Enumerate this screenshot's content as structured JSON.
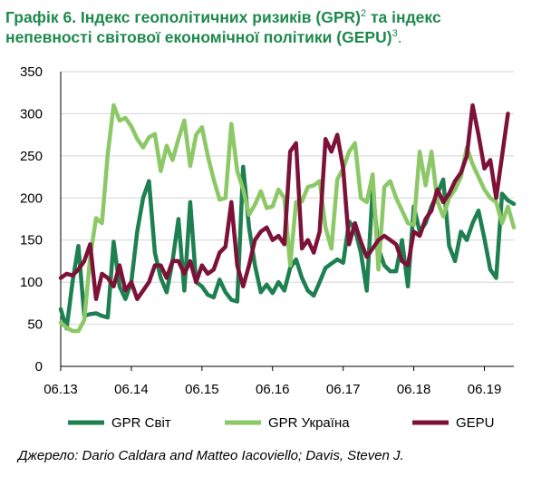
{
  "title": {
    "line1": "Графік 6. Індекс геополітичних ризиків (GPR)",
    "sup1": "2",
    "line1_tail": " та індекс",
    "line2": "непевності світової економічної політики (GEPU)",
    "sup2": "3",
    "line2_tail": "."
  },
  "source": "Джерело: Dario Caldara and Matteo Iacoviello; Davis, Steven J.",
  "chart_data": {
    "type": "line",
    "title": "Графік 6. Індекс геополітичних ризиків (GPR) та індекс непевності світової економічної політики (GEPU)",
    "xlabel": "",
    "ylabel": "",
    "ylim": [
      0,
      350
    ],
    "yticks": [
      0,
      50,
      100,
      150,
      200,
      250,
      300,
      350
    ],
    "xtick_labels": [
      "06.13",
      "06.14",
      "06.15",
      "06.16",
      "06.17",
      "06.18",
      "06.19"
    ],
    "x_start": "06.13",
    "x_end": "07.19",
    "x_unit": "month",
    "legend_position": "bottom",
    "series": [
      {
        "name": "GPR Світ",
        "color": "#1e8050",
        "values": [
          68,
          45,
          100,
          143,
          60,
          62,
          63,
          60,
          58,
          148,
          95,
          80,
          100,
          160,
          200,
          220,
          135,
          105,
          88,
          125,
          175,
          90,
          195,
          100,
          95,
          85,
          82,
          103,
          88,
          79,
          77,
          237,
          165,
          120,
          88,
          97,
          87,
          100,
          90,
          117,
          127,
          105,
          90,
          84,
          100,
          117,
          122,
          127,
          123,
          172,
          163,
          135,
          90,
          210,
          140,
          120,
          113,
          113,
          150,
          95,
          190,
          160,
          170,
          190,
          205,
          222,
          143,
          125,
          160,
          150,
          170,
          185,
          152,
          115,
          105,
          205,
          197,
          193
        ]
      },
      {
        "name": "GPR Україна",
        "color": "#8cc866",
        "values": [
          52,
          46,
          42,
          42,
          55,
          130,
          176,
          170,
          252,
          310,
          292,
          295,
          285,
          270,
          260,
          272,
          276,
          232,
          262,
          245,
          270,
          292,
          238,
          275,
          284,
          250,
          222,
          198,
          200,
          288,
          232,
          210,
          180,
          192,
          208,
          188,
          190,
          210,
          200,
          120,
          195,
          196,
          213,
          215,
          220,
          165,
          140,
          222,
          235,
          255,
          265,
          200,
          195,
          228,
          115,
          213,
          220,
          200,
          185,
          170,
          168,
          255,
          215,
          255,
          196,
          178,
          200,
          210,
          225,
          260,
          240,
          225,
          210,
          200,
          195,
          170,
          190,
          165
        ]
      },
      {
        "name": "GEPU",
        "color": "#7d1238",
        "values": [
          105,
          110,
          108,
          115,
          125,
          145,
          80,
          110,
          105,
          95,
          120,
          90,
          100,
          80,
          90,
          100,
          120,
          120,
          105,
          125,
          125,
          110,
          125,
          100,
          120,
          110,
          115,
          135,
          142,
          195,
          120,
          95,
          120,
          150,
          160,
          165,
          150,
          155,
          145,
          255,
          265,
          140,
          150,
          135,
          160,
          270,
          255,
          275,
          235,
          145,
          170,
          148,
          130,
          140,
          150,
          155,
          150,
          145,
          125,
          120,
          160,
          155,
          175,
          185,
          210,
          195,
          205,
          220,
          230,
          250,
          310,
          275,
          235,
          245,
          200,
          250,
          300
        ]
      }
    ]
  }
}
